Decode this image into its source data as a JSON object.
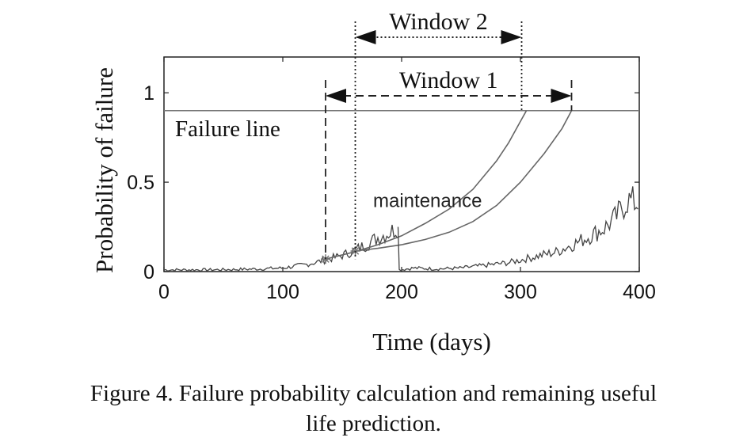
{
  "chart_data": {
    "type": "line",
    "xlabel": "Time (days)",
    "ylabel": "Probability of failure",
    "xlim": [
      0,
      400
    ],
    "ylim": [
      0,
      1.2
    ],
    "xticks": [
      0,
      100,
      200,
      300,
      400
    ],
    "yticks": [
      0,
      0.5,
      1
    ],
    "ytick_labels": [
      "0",
      "0.5",
      "1"
    ],
    "grid": false,
    "failure_line": {
      "label": "Failure line",
      "y": 0.9
    },
    "annotations": {
      "maintenance": "maintenance",
      "window1": {
        "label": "Window 1",
        "start": 136,
        "end": 343,
        "top": 0.97
      },
      "window2": {
        "label": "Window 2",
        "start": 161,
        "end": 301,
        "top": 1.31
      }
    },
    "markers": [
      {
        "x": 136,
        "y": 0.07
      },
      {
        "x": 161,
        "y": 0.115
      }
    ],
    "series": [
      {
        "style": "noisy",
        "x": [
          0,
          20,
          40,
          60,
          80,
          100,
          120,
          136,
          150,
          161,
          170,
          180,
          190,
          197
        ],
        "y": [
          0.01,
          0.01,
          0.01,
          0.012,
          0.015,
          0.02,
          0.04,
          0.065,
          0.09,
          0.12,
          0.15,
          0.19,
          0.22,
          0.25
        ]
      },
      {
        "style": "noisy",
        "x": [
          198,
          210,
          230,
          250,
          270,
          290,
          310,
          330,
          350,
          370,
          380,
          390,
          400
        ],
        "y": [
          0.01,
          0.02,
          0.015,
          0.02,
          0.035,
          0.05,
          0.08,
          0.11,
          0.17,
          0.24,
          0.3,
          0.4,
          0.38
        ]
      },
      {
        "style": "smooth",
        "x": [
          136,
          160,
          180,
          200,
          220,
          240,
          260,
          280,
          290,
          300,
          305
        ],
        "y": [
          0.07,
          0.11,
          0.15,
          0.2,
          0.27,
          0.35,
          0.46,
          0.62,
          0.72,
          0.84,
          0.9
        ]
      },
      {
        "style": "smooth",
        "x": [
          161,
          180,
          200,
          220,
          240,
          260,
          280,
          300,
          320,
          335,
          343
        ],
        "y": [
          0.115,
          0.13,
          0.15,
          0.18,
          0.22,
          0.28,
          0.37,
          0.5,
          0.66,
          0.8,
          0.9
        ]
      }
    ]
  },
  "caption": {
    "line1": "Figure 4.  Failure probability calculation and remaining useful",
    "line2": "life prediction."
  }
}
